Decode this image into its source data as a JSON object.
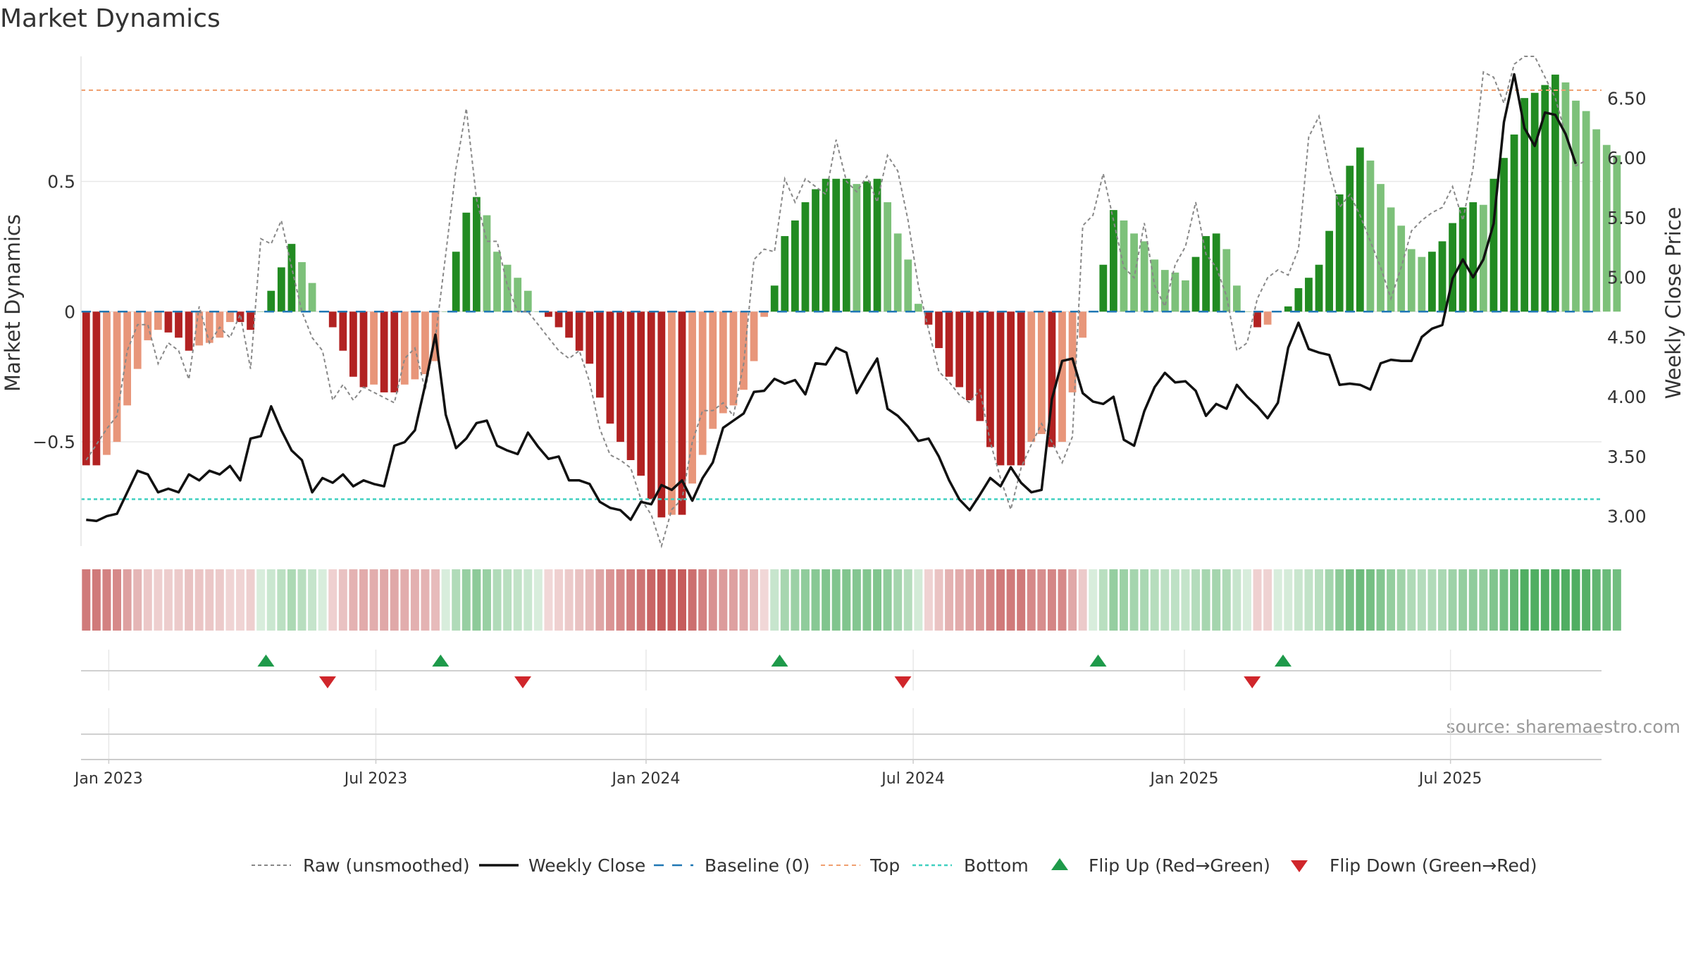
{
  "chart_data": {
    "type": "bar",
    "title": "Market Dynamics",
    "ylabel": "Market Dynamics",
    "y2label": "Weekly Close Price",
    "ylim": [
      -0.9,
      0.98
    ],
    "y2lim": [
      2.75,
      6.85
    ],
    "yticks": [
      -0.5,
      0,
      0.5
    ],
    "ytick_labels": [
      "−0.5",
      "0",
      "0.5"
    ],
    "y2ticks": [
      3.0,
      3.5,
      4.0,
      4.5,
      5.0,
      5.5,
      6.0,
      6.5
    ],
    "y2tick_labels": [
      "3.00",
      "3.50",
      "4.00",
      "4.50",
      "5.00",
      "5.50",
      "6.00",
      "6.50"
    ],
    "x_start": "2023-01-01",
    "week_count": 148,
    "xticks": [
      {
        "label": "Jan 2023",
        "week": 2.2
      },
      {
        "label": "Jul 2023",
        "week": 28.2
      },
      {
        "label": "Jan 2024",
        "week": 54.5
      },
      {
        "label": "Jul 2024",
        "week": 80.5
      },
      {
        "label": "Jan 2025",
        "week": 106.9
      },
      {
        "label": "Jul 2025",
        "week": 132.8
      }
    ],
    "top_level": 0.85,
    "bottom_level": -0.72,
    "baseline": 0,
    "series": [
      {
        "name": "Market Dynamics",
        "kind": "bar",
        "values": [
          -0.59,
          -0.59,
          -0.55,
          -0.5,
          -0.36,
          -0.22,
          -0.11,
          -0.07,
          -0.08,
          -0.1,
          -0.15,
          -0.13,
          -0.12,
          -0.1,
          -0.04,
          -0.04,
          -0.07,
          0,
          0.08,
          0.17,
          0.26,
          0.19,
          0.11,
          0,
          -0.06,
          -0.15,
          -0.25,
          -0.29,
          -0.28,
          -0.31,
          -0.31,
          -0.28,
          -0.26,
          -0.24,
          -0.19,
          0,
          0.23,
          0.38,
          0.44,
          0.37,
          0.23,
          0.18,
          0.13,
          0.08,
          0,
          -0.02,
          -0.06,
          -0.1,
          -0.15,
          -0.2,
          -0.33,
          -0.43,
          -0.5,
          -0.57,
          -0.63,
          -0.72,
          -0.79,
          -0.78,
          -0.78,
          -0.66,
          -0.55,
          -0.45,
          -0.39,
          -0.36,
          -0.3,
          -0.19,
          -0.02,
          0.1,
          0.29,
          0.35,
          0.42,
          0.47,
          0.51,
          0.51,
          0.51,
          0.49,
          0.5,
          0.51,
          0.42,
          0.3,
          0.2,
          0.03,
          -0.05,
          -0.14,
          -0.25,
          -0.29,
          -0.34,
          -0.42,
          -0.52,
          -0.59,
          -0.59,
          -0.59,
          -0.5,
          -0.47,
          -0.52,
          -0.5,
          -0.31,
          -0.1,
          0,
          0.18,
          0.39,
          0.35,
          0.3,
          0.27,
          0.2,
          0.16,
          0.15,
          0.12,
          0.21,
          0.29,
          0.3,
          0.24,
          0.1,
          0,
          -0.06,
          -0.05,
          0,
          0.02,
          0.09,
          0.13,
          0.18,
          0.31,
          0.45,
          0.56,
          0.63,
          0.58,
          0.49,
          0.4,
          0.33,
          0.24,
          0.21,
          0.23,
          0.27,
          0.34,
          0.4,
          0.42,
          0.41,
          0.51,
          0.59,
          0.68,
          0.82,
          0.84,
          0.87,
          0.91,
          0.88,
          0.81,
          0.77,
          0.7,
          0.64,
          0.6
        ]
      },
      {
        "name": "Raw (unsmoothed)",
        "kind": "dashed-line",
        "values": [
          -0.57,
          -0.51,
          -0.45,
          -0.4,
          -0.15,
          -0.05,
          -0.05,
          -0.2,
          -0.12,
          -0.15,
          -0.26,
          0.02,
          -0.12,
          -0.06,
          -0.1,
          -0.01,
          -0.22,
          0.28,
          0.26,
          0.35,
          0.17,
          0,
          -0.1,
          -0.15,
          -0.34,
          -0.28,
          -0.34,
          -0.29,
          -0.31,
          -0.33,
          -0.35,
          -0.18,
          -0.14,
          -0.3,
          -0.1,
          0.22,
          0.55,
          0.78,
          0.43,
          0.27,
          0.27,
          0.1,
          0,
          0,
          -0.05,
          -0.1,
          -0.15,
          -0.18,
          -0.15,
          -0.27,
          -0.45,
          -0.55,
          -0.57,
          -0.6,
          -0.72,
          -0.78,
          -0.9,
          -0.76,
          -0.72,
          -0.5,
          -0.38,
          -0.38,
          -0.35,
          -0.4,
          -0.2,
          0.2,
          0.24,
          0.23,
          0.51,
          0.42,
          0.51,
          0.48,
          0.45,
          0.66,
          0.5,
          0.46,
          0.52,
          0.42,
          0.6,
          0.54,
          0.35,
          0.1,
          -0.07,
          -0.23,
          -0.27,
          -0.32,
          -0.35,
          -0.3,
          -0.5,
          -0.64,
          -0.76,
          -0.6,
          -0.51,
          -0.43,
          -0.5,
          -0.58,
          -0.48,
          0.33,
          0.37,
          0.53,
          0.35,
          0.17,
          0.13,
          0.34,
          0.1,
          0.02,
          0.18,
          0.25,
          0.42,
          0.22,
          0.17,
          0.06,
          -0.15,
          -0.12,
          0.05,
          0.13,
          0.16,
          0.14,
          0.24,
          0.67,
          0.75,
          0.55,
          0.4,
          0.45,
          0.37,
          0.27,
          0.17,
          0.05,
          0.17,
          0.31,
          0.35,
          0.38,
          0.4,
          0.48,
          0.35,
          0.55,
          0.92,
          0.9,
          0.8,
          0.95,
          0.98,
          0.98,
          0.9,
          0.82,
          0.68,
          0.56,
          0.58
        ]
      },
      {
        "name": "Weekly Close",
        "kind": "line",
        "axis": "right",
        "values": [
          2.97,
          2.96,
          3.0,
          3.02,
          3.2,
          3.38,
          3.35,
          3.2,
          3.23,
          3.2,
          3.35,
          3.3,
          3.38,
          3.35,
          3.42,
          3.3,
          3.65,
          3.67,
          3.92,
          3.72,
          3.55,
          3.47,
          3.2,
          3.32,
          3.28,
          3.35,
          3.25,
          3.3,
          3.27,
          3.25,
          3.59,
          3.62,
          3.72,
          4.1,
          4.52,
          3.85,
          3.57,
          3.65,
          3.78,
          3.8,
          3.59,
          3.55,
          3.52,
          3.7,
          3.58,
          3.48,
          3.5,
          3.3,
          3.3,
          3.27,
          3.12,
          3.07,
          3.05,
          2.97,
          3.12,
          3.1,
          3.26,
          3.22,
          3.3,
          3.13,
          3.32,
          3.45,
          3.74,
          3.8,
          3.86,
          4.04,
          4.05,
          4.15,
          4.11,
          4.14,
          4.02,
          4.28,
          4.27,
          4.41,
          4.37,
          4.03,
          4.18,
          4.32,
          3.9,
          3.84,
          3.75,
          3.63,
          3.65,
          3.5,
          3.3,
          3.14,
          3.05,
          3.18,
          3.32,
          3.25,
          3.41,
          3.28,
          3.2,
          3.22,
          3.98,
          4.3,
          4.32,
          4.03,
          3.96,
          3.94,
          4.0,
          3.64,
          3.59,
          3.88,
          4.08,
          4.2,
          4.12,
          4.13,
          4.05,
          3.84,
          3.94,
          3.9,
          4.1,
          4.0,
          3.92,
          3.82,
          3.95,
          4.41,
          4.62,
          4.4,
          4.37,
          4.35,
          4.1,
          4.11,
          4.1,
          4.06,
          4.28,
          4.31,
          4.3,
          4.3,
          4.5,
          4.57,
          4.6,
          4.99,
          5.15,
          5.0,
          5.15,
          5.45,
          6.3,
          6.7,
          6.25,
          6.1,
          6.38,
          6.36,
          6.2,
          5.95
        ]
      }
    ],
    "heat_strip": {
      "name": "Regime strip",
      "encoding": "one cell per week, shade proportional to Market Dynamics value (red negative, green positive)"
    },
    "flip_up_weeks": [
      17.5,
      34.5,
      67.5,
      98.5,
      116.5
    ],
    "flip_down_weeks": [
      23.5,
      42.5,
      79.5,
      113.5
    ],
    "legend": {
      "position": "bottom",
      "entries": [
        {
          "key": "raw",
          "label": "Raw (unsmoothed)"
        },
        {
          "key": "close",
          "label": "Weekly Close"
        },
        {
          "key": "baseline",
          "label": "Baseline (0)"
        },
        {
          "key": "top",
          "label": "Top"
        },
        {
          "key": "bottom",
          "label": "Bottom"
        },
        {
          "key": "flip_up",
          "label": "Flip Up (Red→Green)"
        },
        {
          "key": "flip_down",
          "label": "Flip Down (Green→Red)"
        }
      ]
    },
    "source_note": "source: sharemaestro.com",
    "colors": {
      "neg_strong": "#b22222",
      "neg_weak": "#e8967a",
      "pos_strong": "#228b22",
      "pos_weak": "#7dc17a",
      "raw_line": "#888888",
      "close_line": "#111111",
      "baseline": "#1f77b4",
      "top_line": "#f0a070",
      "bottom_line": "#40d0c0",
      "flip_up": "#1e9a4a",
      "flip_down": "#d0262b",
      "grid": "#e8e8e8",
      "text": "#333333"
    }
  }
}
